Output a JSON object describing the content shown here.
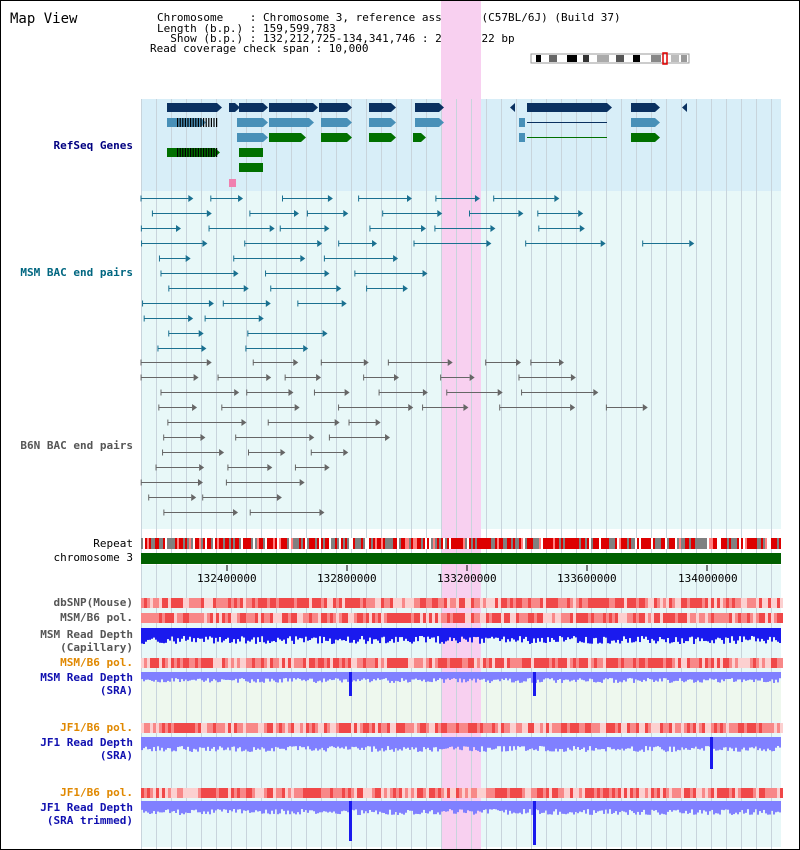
{
  "title": "Map View",
  "info": {
    "chromosome": "Chromosome    : Chromosome 3, reference assembly (C57BL/6J) (Build 37)",
    "length": "Length (b.p.) : 159,599,783",
    "show": "  Show (b.p.) : 132,212,725-134,341,746 : 2,129,022 bp",
    "coverage": "Read coverage check span : 10,000"
  },
  "tracks": {
    "refseq": "RefSeq Genes",
    "msm_bac": "MSM BAC end pairs",
    "b6n_bac": "B6N BAC end pairs",
    "repeat": "Repeat",
    "chromosome": "chromosome 3",
    "dbsnp": "dbSNP(Mouse)",
    "msm_pol1": "MSM/B6 pol.",
    "msm_depth_cap_1": "MSM Read Depth",
    "msm_depth_cap_2": "(Capillary)",
    "msm_pol2": "MSM/B6 pol.",
    "msm_depth_sra_1": "MSM Read Depth",
    "msm_depth_sra_2": "(SRA)",
    "jf1_pol1": "JF1/B6 pol.",
    "jf1_depth_1": "JF1 Read Depth",
    "jf1_depth_2": "(SRA)",
    "jf1_pol2": "JF1/B6 pol.",
    "jf1_trim_1": "JF1 Read Depth",
    "jf1_trim_2": "(SRA trimmed)"
  },
  "axis": {
    "ticks": [
      "132400000",
      "132800000",
      "133200000",
      "133600000",
      "134000000"
    ]
  },
  "colors": {
    "refseq_bg": "#d8eef8",
    "track_bg": "#e8f8f8",
    "highlight": "#f8d0f0",
    "gene_dark": "#0a3060",
    "gene_mid": "#4890b8",
    "gene_green": "#007000",
    "msm_bac": "#1a7090",
    "b6n_bac": "#666666",
    "chrom_bar": "#006000",
    "depth_dark": "#1a1aee",
    "depth_light": "#8080ff",
    "pol_red": "#f05050"
  }
}
